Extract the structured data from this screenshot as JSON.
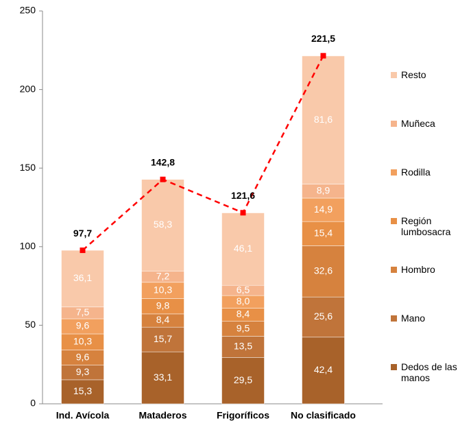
{
  "chart_data": {
    "type": "bar",
    "stacked": true,
    "categories": [
      "Ind. Avícola",
      "Mataderos",
      "Frigoríficos",
      "No clasificado"
    ],
    "series": [
      {
        "name": "Dedos de las manos",
        "color": "#a8622a",
        "values": [
          15.3,
          33.1,
          29.5,
          42.4
        ],
        "value_labels": [
          "15,3",
          "33,1",
          "29,5",
          "42,4"
        ]
      },
      {
        "name": "Mano",
        "color": "#c0743a",
        "values": [
          9.3,
          15.7,
          13.5,
          25.6
        ],
        "value_labels": [
          "9,3",
          "15,7",
          "13,5",
          "25,6"
        ]
      },
      {
        "name": "Hombro",
        "color": "#d6823e",
        "values": [
          9.6,
          8.4,
          9.5,
          32.6
        ],
        "value_labels": [
          "9,6",
          "8,4",
          "9,5",
          "32,6"
        ]
      },
      {
        "name": "Región lumbosacra",
        "color": "#e89046",
        "values": [
          10.3,
          9.8,
          8.4,
          15.4
        ],
        "value_labels": [
          "10,3",
          "9,8",
          "8,4",
          "15,4"
        ]
      },
      {
        "name": "Rodilla",
        "color": "#f2a05e",
        "values": [
          9.6,
          10.3,
          8.0,
          14.9
        ],
        "value_labels": [
          "9,6",
          "10,3",
          "8,0",
          "14,9"
        ]
      },
      {
        "name": "Muñeca",
        "color": "#f5b48c",
        "values": [
          7.5,
          7.2,
          6.5,
          8.9
        ],
        "value_labels": [
          "7,5",
          "7,2",
          "6,5",
          "8,9"
        ]
      },
      {
        "name": "Resto",
        "color": "#f9c9aa",
        "values": [
          36.1,
          58.3,
          46.1,
          81.6
        ],
        "value_labels": [
          "36,1",
          "58,3",
          "46,1",
          "81,6"
        ]
      }
    ],
    "line": {
      "color": "#ff0000",
      "values": [
        97.7,
        142.8,
        121.6,
        221.5
      ],
      "value_labels": [
        "97,7",
        "142,8",
        "121,6",
        "221,5"
      ]
    },
    "ylim": [
      0,
      250
    ],
    "yticks": [
      0,
      50,
      100,
      150,
      200,
      250
    ],
    "grid": false,
    "legend": "right"
  }
}
